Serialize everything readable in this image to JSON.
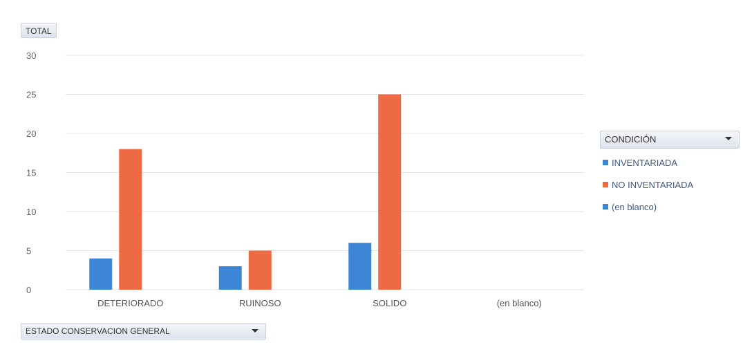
{
  "pivot": {
    "value_field": "TOTAL",
    "axis_field": "ESTADO CONSERVACION GENERAL",
    "legend_field": "CONDICIÓN"
  },
  "legend": {
    "items": [
      {
        "label": "INVENTARIADA",
        "color": "#3d86d6"
      },
      {
        "label": "NO INVENTARIADA",
        "color": "#ee6a45"
      },
      {
        "label": "(en blanco)",
        "color": "#3d86d6"
      }
    ]
  },
  "chart_data": {
    "type": "bar",
    "categories": [
      "DETERIORADO",
      "RUINOSO",
      "SOLIDO",
      "(en blanco)"
    ],
    "series": [
      {
        "name": "INVENTARIADA",
        "color": "#3d86d6",
        "values": [
          4,
          3,
          6,
          0
        ]
      },
      {
        "name": "NO INVENTARIADA",
        "color": "#ee6a45",
        "values": [
          18,
          5,
          25,
          0
        ]
      },
      {
        "name": "(en blanco)",
        "color": "#3d86d6",
        "values": [
          0,
          0,
          0,
          0
        ]
      }
    ],
    "ylim": [
      0,
      30
    ],
    "yticks": [
      "0",
      "5",
      "10",
      "15",
      "20",
      "25",
      "30"
    ],
    "grid": true,
    "legend_position": "right"
  }
}
